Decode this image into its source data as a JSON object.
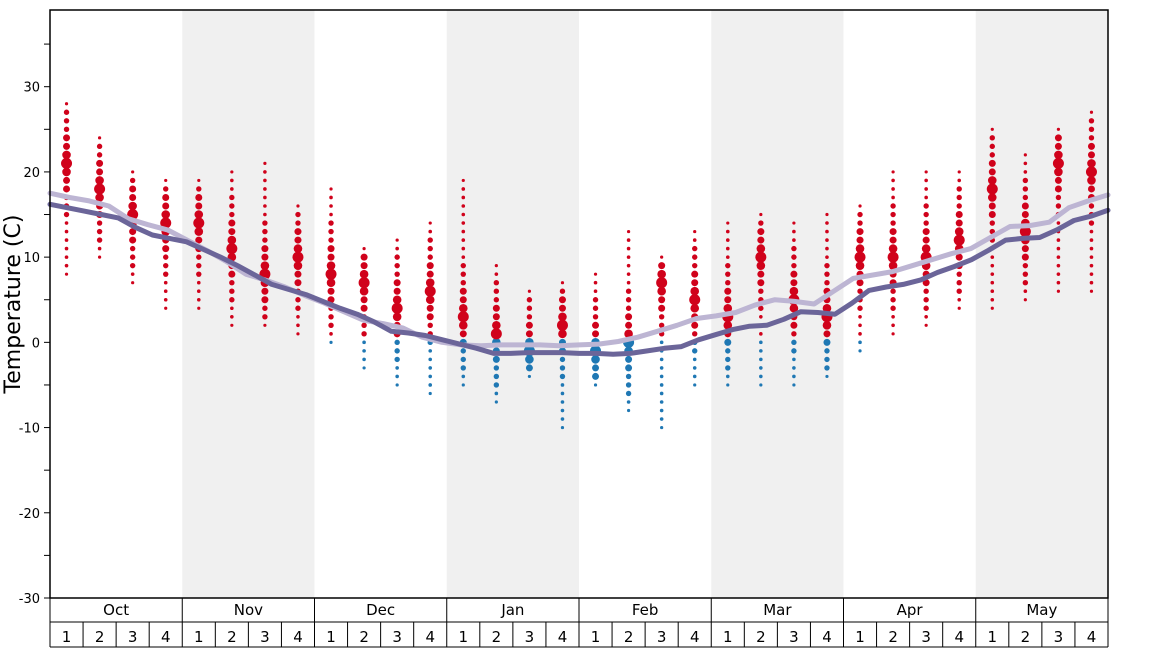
{
  "chart_data": {
    "type": "scatter",
    "ylabel": "Temperature (C)",
    "ylim": [
      -30,
      39
    ],
    "y_ticks": [
      30,
      20,
      10,
      0,
      -10,
      -20,
      -30
    ],
    "months": [
      "Oct",
      "Nov",
      "Dec",
      "Jan",
      "Feb",
      "Mar",
      "Apr",
      "May"
    ],
    "week_labels": [
      "1",
      "2",
      "3",
      "4"
    ],
    "colors": {
      "warm_dots": "#d0021b",
      "cold_dots": "#1f78b4",
      "line_light": "#bdb5d3",
      "line_dark": "#6b6599",
      "band_shade": "#f0f0f0"
    },
    "series": [
      {
        "values": [
          17.5,
          17.0,
          16.6,
          16.0,
          14.5,
          13.8,
          13.2,
          12.0,
          10.8,
          9.5,
          8.0,
          7.3,
          6.5,
          5.5,
          4.6,
          3.6,
          2.6,
          2.2,
          1.7,
          0.6,
          0.0,
          -0.3,
          -0.4,
          -0.3,
          -0.3,
          -0.3,
          -0.4,
          -0.3,
          -0.2,
          0.1,
          0.6,
          1.3,
          2.0,
          2.8,
          3.1,
          3.5,
          4.4,
          5.0,
          4.8,
          4.5,
          6.0,
          7.5,
          7.9,
          8.3,
          9.0,
          9.7,
          10.4,
          11.0,
          12.3,
          13.6,
          13.7,
          14.1,
          15.8,
          16.6,
          17.3
        ]
      },
      {
        "values": [
          16.2,
          15.8,
          15.4,
          15.0,
          14.6,
          13.5,
          12.6,
          12.2,
          11.8,
          10.9,
          10.0,
          9.0,
          7.9,
          6.8,
          6.2,
          5.6,
          4.8,
          4.0,
          3.3,
          2.4,
          1.3,
          1.1,
          0.8,
          0.3,
          -0.2,
          -0.7,
          -1.3,
          -1.3,
          -1.2,
          -1.2,
          -1.2,
          -1.3,
          -1.3,
          -1.4,
          -1.3,
          -1.0,
          -0.7,
          -0.5,
          0.3,
          0.9,
          1.5,
          1.9,
          2.0,
          2.7,
          3.6,
          3.5,
          3.3,
          4.6,
          6.1,
          6.5,
          6.8,
          7.3,
          8.2,
          8.9,
          9.7,
          10.8,
          12.0,
          12.2,
          12.3,
          13.2,
          14.3,
          14.8,
          15.5
        ]
      }
    ],
    "columns": [
      {
        "lo": 8,
        "hi": 28,
        "big": 21
      },
      {
        "lo": 10,
        "hi": 24,
        "big": 18
      },
      {
        "lo": 7,
        "hi": 20,
        "big": 15
      },
      {
        "lo": 4,
        "hi": 19,
        "big": 14
      },
      {
        "lo": 4,
        "hi": 19,
        "big": 14
      },
      {
        "lo": 2,
        "hi": 20,
        "big": 11
      },
      {
        "lo": 2,
        "hi": 21,
        "big": 8
      },
      {
        "lo": 1,
        "hi": 16,
        "big": 10
      },
      {
        "lo": 0,
        "hi": 18,
        "big": 8
      },
      {
        "lo": -3,
        "hi": 11,
        "big": 7
      },
      {
        "lo": -5,
        "hi": 12,
        "big": 4
      },
      {
        "lo": -6,
        "hi": 14,
        "big": 6
      },
      {
        "lo": -5,
        "hi": 19,
        "big": 3
      },
      {
        "lo": -7,
        "hi": 9,
        "big": 1
      },
      {
        "lo": -4,
        "hi": 6,
        "big": -1
      },
      {
        "lo": -10,
        "hi": 7,
        "big": 2
      },
      {
        "lo": -5,
        "hi": 8,
        "big": -1
      },
      {
        "lo": -8,
        "hi": 13,
        "big": 0
      },
      {
        "lo": -10,
        "hi": 10,
        "big": 7
      },
      {
        "lo": -5,
        "hi": 13,
        "big": 5
      },
      {
        "lo": -5,
        "hi": 14,
        "big": 3
      },
      {
        "lo": -5,
        "hi": 15,
        "big": 10
      },
      {
        "lo": -5,
        "hi": 14,
        "big": 5
      },
      {
        "lo": -4,
        "hi": 15,
        "big": 3
      },
      {
        "lo": -1,
        "hi": 16,
        "big": 10
      },
      {
        "lo": 1,
        "hi": 20,
        "big": 10
      },
      {
        "lo": 2,
        "hi": 20,
        "big": 10
      },
      {
        "lo": 4,
        "hi": 20,
        "big": 12
      },
      {
        "lo": 4,
        "hi": 25,
        "big": 18
      },
      {
        "lo": 5,
        "hi": 22,
        "big": 13
      },
      {
        "lo": 6,
        "hi": 25,
        "big": 21
      },
      {
        "lo": 6,
        "hi": 27,
        "big": 20
      }
    ]
  }
}
